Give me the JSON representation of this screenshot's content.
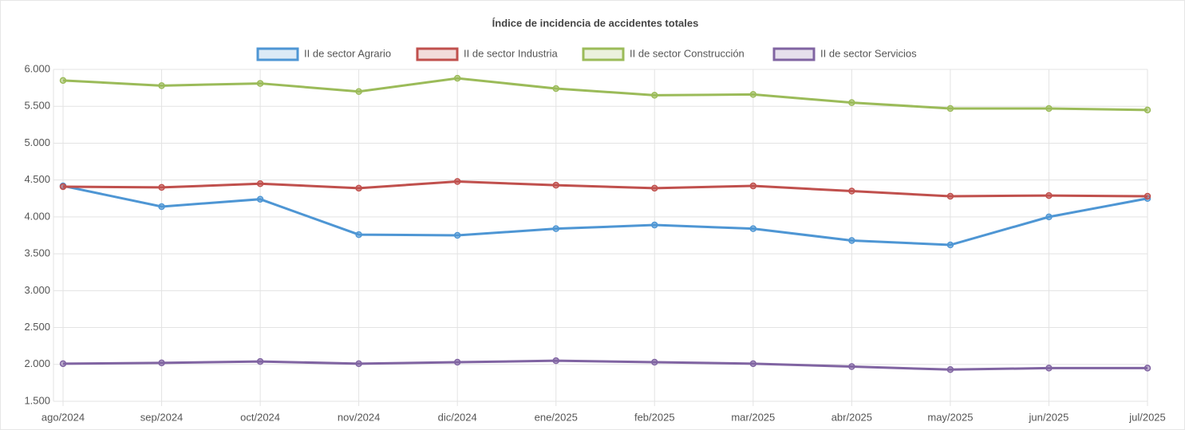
{
  "chart_data": {
    "type": "line",
    "title": "Índice de incidencia de accidentes totales",
    "categories": [
      "ago/2024",
      "sep/2024",
      "oct/2024",
      "nov/2024",
      "dic/2024",
      "ene/2025",
      "feb/2025",
      "mar/2025",
      "abr/2025",
      "may/2025",
      "jun/2025",
      "jul/2025"
    ],
    "series": [
      {
        "name": "II de sector Agrario",
        "color": "#4e96d4",
        "values": [
          4420,
          4140,
          4240,
          3760,
          3750,
          3840,
          3890,
          3840,
          3680,
          3620,
          4000,
          4250
        ]
      },
      {
        "name": "II de sector Industria",
        "color": "#c0504d",
        "values": [
          4410,
          4400,
          4450,
          4390,
          4480,
          4430,
          4390,
          4420,
          4350,
          4280,
          4290,
          4280
        ]
      },
      {
        "name": "II de sector Construcción",
        "color": "#9bbb59",
        "values": [
          5850,
          5780,
          5810,
          5700,
          5880,
          5740,
          5650,
          5660,
          5550,
          5470,
          5470,
          5450
        ]
      },
      {
        "name": "II de sector Servicios",
        "color": "#8064a2",
        "values": [
          2010,
          2020,
          2040,
          2010,
          2030,
          2050,
          2030,
          2010,
          1970,
          1930,
          1950,
          1950
        ]
      }
    ],
    "ylim": [
      1500,
      6000
    ],
    "yticks": [
      {
        "value": 1500,
        "label": "1.500"
      },
      {
        "value": 2000,
        "label": "2.000"
      },
      {
        "value": 2500,
        "label": "2.500"
      },
      {
        "value": 3000,
        "label": "3.000"
      },
      {
        "value": 3500,
        "label": "3.500"
      },
      {
        "value": 4000,
        "label": "4.000"
      },
      {
        "value": 4500,
        "label": "4.500"
      },
      {
        "value": 5000,
        "label": "5.000"
      },
      {
        "value": 5500,
        "label": "5.500"
      },
      {
        "value": 6000,
        "label": "6.000"
      }
    ],
    "grid": true
  }
}
